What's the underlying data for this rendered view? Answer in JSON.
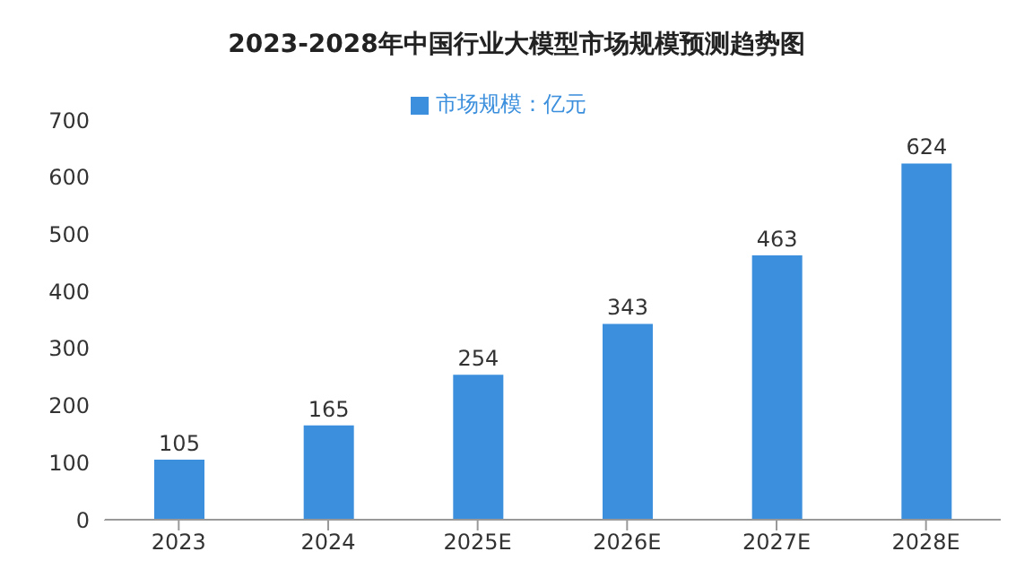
{
  "chart_data": {
    "type": "bar",
    "title": "2023-2028年中国行业大模型市场规模预测趋势图",
    "categories": [
      "2023",
      "2024",
      "2025E",
      "2026E",
      "2027E",
      "2028E"
    ],
    "series": [
      {
        "name": "市场规模：亿元",
        "color": "#3b8fdd",
        "values": [
          105,
          165,
          254,
          343,
          463,
          624
        ]
      }
    ],
    "ylim": [
      0,
      700
    ],
    "yticks": [
      0,
      100,
      200,
      300,
      400,
      500,
      600,
      700
    ],
    "grid": false,
    "legend": "top",
    "data_labels": true
  }
}
